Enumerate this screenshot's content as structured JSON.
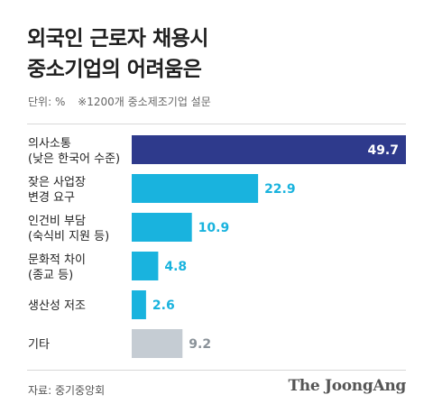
{
  "title": {
    "line1": "외국인 근로자 채용시",
    "line2": "중소기업의 어려움은"
  },
  "subtitle": {
    "unit": "단위: %",
    "note": "※1200개 중소제조기업 설문"
  },
  "source": "자료: 중기중앙회",
  "logo": "The JoongAng",
  "colors": {
    "primary": "#2e3a8c",
    "secondary": "#19b3de",
    "other": "#c5ccd3",
    "label_on_bar": "#ffffff",
    "label_secondary": "#19b3de",
    "label_other": "#8a9299"
  },
  "chart_data": {
    "type": "bar",
    "orientation": "horizontal",
    "categories": [
      [
        "의사소통",
        "(낮은 한국어 수준)"
      ],
      [
        "잦은 사업장",
        "변경 요구"
      ],
      [
        "인건비 부담",
        "(숙식비 지원 등)"
      ],
      [
        "문화적 차이",
        "(종교 등)"
      ],
      [
        "생산성 저조"
      ],
      [
        "기타"
      ]
    ],
    "values": [
      49.7,
      22.9,
      10.9,
      4.8,
      2.6,
      9.2
    ],
    "value_labels": [
      "49.7",
      "22.9",
      "10.9",
      "4.8",
      "2.6",
      "9.2"
    ],
    "unit": "%",
    "xlim": [
      0,
      49.7
    ],
    "grid": false,
    "legend": "none"
  }
}
